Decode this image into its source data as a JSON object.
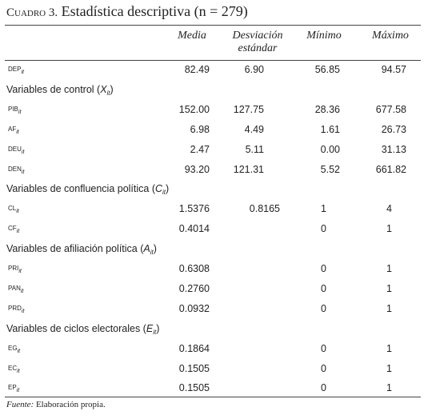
{
  "title": {
    "label": "Cuadro 3.",
    "text": "Estadística descriptiva (n = 279)"
  },
  "table": {
    "columns": [
      "Media",
      "Desviación estándar",
      "Mínimo",
      "Máximo"
    ],
    "top_rows": [
      {
        "name": "DEP",
        "sub": "it",
        "cells": [
          "82.49",
          "6.90",
          "56.85",
          "94.57"
        ]
      }
    ],
    "sections": [
      {
        "heading": {
          "prefix": "Variables de control (",
          "var": "X",
          "sub": "it",
          "suffix": ")"
        },
        "rows": [
          {
            "name": "PIB",
            "sub": "it",
            "cells": [
              "152.00",
              "127.75",
              "28.36",
              "677.58"
            ]
          },
          {
            "name": "AF",
            "sub": "it",
            "cells": [
              "6.98",
              "4.49",
              "1.61",
              "26.73"
            ]
          },
          {
            "name": "DEU",
            "sub": "it",
            "cells": [
              "2.47",
              "5.11",
              "0.00",
              "31.13"
            ]
          },
          {
            "name": "DEN",
            "sub": "it",
            "cells": [
              "93.20",
              "121.31",
              "5.52",
              "661.82"
            ]
          }
        ]
      },
      {
        "heading": {
          "prefix": "Variables de confluencia política (",
          "var": "C",
          "sub": "it",
          "suffix": ")"
        },
        "rows": [
          {
            "name": "CL",
            "sub": "it",
            "cells": [
              "1.5376",
              "0.8165",
              "1",
              "4"
            ]
          },
          {
            "name": "CF",
            "sub": "it",
            "cells": [
              "0.4014",
              "0",
              "1"
            ]
          }
        ]
      },
      {
        "heading": {
          "prefix": "Variables de afiliación política (",
          "var": "A",
          "sub": "it",
          "suffix": ")"
        },
        "rows": [
          {
            "name": "PRI",
            "sub": "it",
            "cells": [
              "0.6308",
              "0",
              "1"
            ]
          },
          {
            "name": "PAN",
            "sub": "it",
            "cells": [
              "0.2760",
              "0",
              "1"
            ]
          },
          {
            "name": "PRD",
            "sub": "it",
            "cells": [
              "0.0932",
              "0",
              "1"
            ]
          }
        ]
      },
      {
        "heading": {
          "prefix": "Variables de ciclos electorales (",
          "var": "E",
          "sub": "it",
          "suffix": ")"
        },
        "rows": [
          {
            "name": "EG",
            "sub": "it",
            "cells": [
              "0.1864",
              "0",
              "1"
            ]
          },
          {
            "name": "EC",
            "sub": "it",
            "cells": [
              "0.1505",
              "0",
              "1"
            ]
          },
          {
            "name": "EP",
            "sub": "it",
            "cells": [
              "0.1505",
              "0",
              "1"
            ]
          }
        ]
      }
    ]
  },
  "footer": {
    "source_label": "Fuente:",
    "text": "Elaboración propia."
  }
}
